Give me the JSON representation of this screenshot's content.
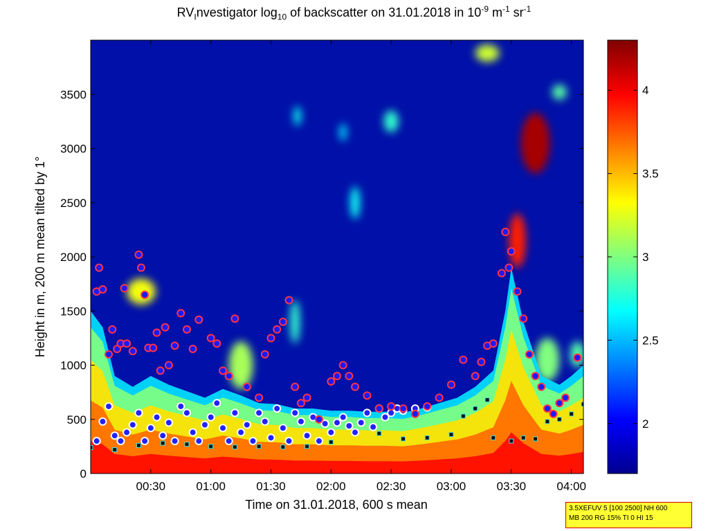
{
  "chart_data": {
    "type": "heatmap",
    "title_parts": {
      "pre": "RV",
      "sub1": "I",
      "mid1": "nvestigator log",
      "sub2": "10",
      "mid2": " of backscatter on 31.01.2018 in 10",
      "sup1": "-9",
      "mid3": " m",
      "sup2": "-1",
      "mid4": " sr",
      "sup3": "-1"
    },
    "xlabel": "Time on 31.01.2018, 600 s mean",
    "ylabel": "Height in m, 200 m mean tilted by 1°",
    "x_ticks": [
      "00:30",
      "01:00",
      "01:30",
      "02:00",
      "02:30",
      "03:00",
      "03:30",
      "04:00"
    ],
    "x_tick_hours": [
      0.5,
      1.0,
      1.5,
      2.0,
      2.5,
      3.0,
      3.5,
      4.0
    ],
    "xlim_hours": [
      0.0,
      4.1
    ],
    "y_ticks": [
      0,
      500,
      1000,
      1500,
      2000,
      2500,
      3000,
      3500
    ],
    "ylim": [
      0,
      4000
    ],
    "colorbar": {
      "range": [
        1.7,
        4.3
      ],
      "ticks": [
        2,
        2.5,
        3,
        3.5,
        4
      ],
      "tick_labels": [
        "2",
        "2.5",
        "3",
        "3.5",
        "4"
      ],
      "colormap": "jet"
    },
    "background_value": 1.75,
    "boundary_layer_top_m": [
      [
        0.0,
        1500
      ],
      [
        0.1,
        1350
      ],
      [
        0.2,
        900
      ],
      [
        0.35,
        800
      ],
      [
        0.5,
        900
      ],
      [
        0.65,
        820
      ],
      [
        0.8,
        760
      ],
      [
        0.95,
        700
      ],
      [
        1.1,
        780
      ],
      [
        1.25,
        720
      ],
      [
        1.4,
        650
      ],
      [
        1.55,
        640
      ],
      [
        1.7,
        600
      ],
      [
        1.85,
        600
      ],
      [
        2.0,
        580
      ],
      [
        2.15,
        580
      ],
      [
        2.3,
        570
      ],
      [
        2.45,
        570
      ],
      [
        2.6,
        560
      ],
      [
        2.75,
        600
      ],
      [
        2.9,
        650
      ],
      [
        3.05,
        700
      ],
      [
        3.2,
        800
      ],
      [
        3.35,
        950
      ],
      [
        3.45,
        1500
      ],
      [
        3.5,
        1900
      ],
      [
        3.6,
        1400
      ],
      [
        3.75,
        900
      ],
      [
        3.9,
        820
      ],
      [
        4.0,
        900
      ],
      [
        4.1,
        1000
      ]
    ],
    "cloud_blobs": [
      {
        "hour": 3.7,
        "height_m": 3050,
        "rx_h": 0.12,
        "ry_m": 280,
        "value": 4.2
      },
      {
        "hour": 0.42,
        "height_m": 1680,
        "rx_h": 0.12,
        "ry_m": 120,
        "value": 3.3
      },
      {
        "hour": 3.55,
        "height_m": 2150,
        "rx_h": 0.07,
        "ry_m": 250,
        "value": 3.9
      },
      {
        "hour": 1.25,
        "height_m": 1000,
        "rx_h": 0.1,
        "ry_m": 220,
        "value": 3.1
      },
      {
        "hour": 2.2,
        "height_m": 2500,
        "rx_h": 0.04,
        "ry_m": 150,
        "value": 2.7
      },
      {
        "hour": 2.5,
        "height_m": 3250,
        "rx_h": 0.06,
        "ry_m": 100,
        "value": 2.8
      },
      {
        "hour": 3.9,
        "height_m": 3520,
        "rx_h": 0.06,
        "ry_m": 70,
        "value": 2.9
      },
      {
        "hour": 3.3,
        "height_m": 3880,
        "rx_h": 0.1,
        "ry_m": 80,
        "value": 3.2
      },
      {
        "hour": 1.72,
        "height_m": 3300,
        "rx_h": 0.03,
        "ry_m": 90,
        "value": 2.7
      },
      {
        "hour": 2.1,
        "height_m": 3150,
        "rx_h": 0.03,
        "ry_m": 80,
        "value": 2.6
      },
      {
        "hour": 1.7,
        "height_m": 1400,
        "rx_h": 0.04,
        "ry_m": 200,
        "value": 2.8
      },
      {
        "hour": 3.8,
        "height_m": 1050,
        "rx_h": 0.1,
        "ry_m": 200,
        "value": 3.0
      },
      {
        "hour": 4.05,
        "height_m": 1100,
        "rx_h": 0.06,
        "ry_m": 120,
        "value": 2.9
      }
    ],
    "detected_layers_m": [
      [
        0.05,
        1680
      ],
      [
        0.07,
        1900
      ],
      [
        0.1,
        1700
      ],
      [
        0.15,
        1100
      ],
      [
        0.18,
        1330
      ],
      [
        0.22,
        1150
      ],
      [
        0.25,
        1200
      ],
      [
        0.28,
        1710
      ],
      [
        0.3,
        1200
      ],
      [
        0.35,
        1130
      ],
      [
        0.4,
        2020
      ],
      [
        0.42,
        1900
      ],
      [
        0.45,
        1650
      ],
      [
        0.48,
        1160
      ],
      [
        0.52,
        1160
      ],
      [
        0.55,
        1300
      ],
      [
        0.58,
        950
      ],
      [
        0.62,
        1350
      ],
      [
        0.65,
        1000
      ],
      [
        0.7,
        1180
      ],
      [
        0.75,
        1480
      ],
      [
        0.8,
        1330
      ],
      [
        0.85,
        1150
      ],
      [
        0.9,
        1420
      ],
      [
        1.0,
        1250
      ],
      [
        1.05,
        1200
      ],
      [
        1.1,
        950
      ],
      [
        1.15,
        900
      ],
      [
        1.2,
        1430
      ],
      [
        1.3,
        800
      ],
      [
        1.4,
        700
      ],
      [
        1.45,
        1100
      ],
      [
        1.5,
        1250
      ],
      [
        1.55,
        1330
      ],
      [
        1.6,
        1400
      ],
      [
        1.65,
        1600
      ],
      [
        1.7,
        800
      ],
      [
        1.75,
        650
      ],
      [
        1.8,
        700
      ],
      [
        1.9,
        500
      ],
      [
        2.0,
        850
      ],
      [
        2.05,
        900
      ],
      [
        2.1,
        1000
      ],
      [
        2.15,
        900
      ],
      [
        2.2,
        800
      ],
      [
        2.3,
        720
      ],
      [
        2.4,
        600
      ],
      [
        2.5,
        620
      ],
      [
        2.6,
        600
      ],
      [
        2.7,
        550
      ],
      [
        2.8,
        620
      ],
      [
        2.9,
        700
      ],
      [
        3.0,
        820
      ],
      [
        3.1,
        1050
      ],
      [
        3.2,
        900
      ],
      [
        3.25,
        1030
      ],
      [
        3.3,
        1180
      ],
      [
        3.35,
        1200
      ],
      [
        3.42,
        1850
      ],
      [
        3.45,
        2230
      ],
      [
        3.48,
        1900
      ],
      [
        3.5,
        2050
      ],
      [
        3.55,
        1680
      ],
      [
        3.6,
        1430
      ],
      [
        3.65,
        1100
      ],
      [
        3.7,
        900
      ],
      [
        3.75,
        800
      ],
      [
        3.8,
        600
      ],
      [
        3.85,
        550
      ],
      [
        3.9,
        650
      ],
      [
        3.95,
        700
      ],
      [
        4.05,
        1070
      ]
    ],
    "lower_layers_m": [
      [
        0.05,
        300
      ],
      [
        0.1,
        480
      ],
      [
        0.15,
        620
      ],
      [
        0.2,
        350
      ],
      [
        0.25,
        300
      ],
      [
        0.3,
        380
      ],
      [
        0.35,
        450
      ],
      [
        0.4,
        560
      ],
      [
        0.45,
        300
      ],
      [
        0.5,
        420
      ],
      [
        0.55,
        520
      ],
      [
        0.6,
        350
      ],
      [
        0.65,
        470
      ],
      [
        0.7,
        300
      ],
      [
        0.75,
        620
      ],
      [
        0.8,
        560
      ],
      [
        0.85,
        380
      ],
      [
        0.9,
        300
      ],
      [
        0.95,
        450
      ],
      [
        1.0,
        520
      ],
      [
        1.05,
        650
      ],
      [
        1.1,
        420
      ],
      [
        1.15,
        300
      ],
      [
        1.2,
        560
      ],
      [
        1.25,
        380
      ],
      [
        1.3,
        450
      ],
      [
        1.35,
        300
      ],
      [
        1.4,
        560
      ],
      [
        1.45,
        480
      ],
      [
        1.5,
        330
      ],
      [
        1.55,
        600
      ],
      [
        1.6,
        420
      ],
      [
        1.65,
        300
      ],
      [
        1.7,
        560
      ],
      [
        1.75,
        480
      ],
      [
        1.8,
        350
      ],
      [
        1.85,
        520
      ],
      [
        1.9,
        300
      ],
      [
        1.95,
        460
      ],
      [
        2.0,
        380
      ],
      [
        2.05,
        470
      ],
      [
        2.1,
        520
      ],
      [
        2.15,
        440
      ],
      [
        2.2,
        380
      ],
      [
        2.25,
        470
      ],
      [
        2.3,
        560
      ],
      [
        2.35,
        430
      ],
      [
        2.4,
        600
      ],
      [
        2.45,
        520
      ],
      [
        2.5,
        560
      ],
      [
        2.55,
        600
      ],
      [
        2.6,
        580
      ],
      [
        2.7,
        600
      ],
      [
        2.8,
        610
      ]
    ],
    "aerosol_base_m": [
      [
        0.0,
        240
      ],
      [
        0.2,
        220
      ],
      [
        0.4,
        260
      ],
      [
        0.6,
        280
      ],
      [
        0.8,
        270
      ],
      [
        1.0,
        250
      ],
      [
        1.2,
        245
      ],
      [
        1.4,
        250
      ],
      [
        1.6,
        245
      ],
      [
        1.8,
        250
      ],
      [
        2.0,
        290
      ],
      [
        2.2,
        380
      ],
      [
        2.4,
        370
      ],
      [
        2.6,
        320
      ],
      [
        2.8,
        330
      ],
      [
        3.0,
        360
      ],
      [
        3.1,
        530
      ],
      [
        3.2,
        600
      ],
      [
        3.3,
        680
      ],
      [
        3.35,
        330
      ],
      [
        3.5,
        300
      ],
      [
        3.6,
        330
      ],
      [
        3.7,
        320
      ],
      [
        3.8,
        480
      ],
      [
        3.9,
        500
      ],
      [
        4.0,
        550
      ],
      [
        4.1,
        640
      ]
    ]
  },
  "info_box": {
    "line1": "3.5XEFUV 5 [100 2500] NH 600",
    "line2": "MB 200 RG 15% TI 0 HI 15"
  }
}
